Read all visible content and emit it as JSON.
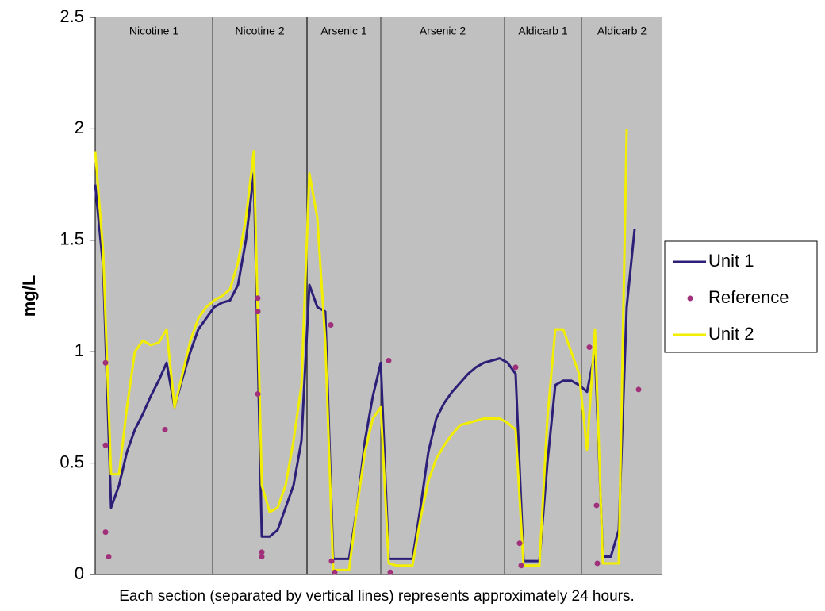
{
  "chart_data": {
    "type": "line",
    "y_label": "mg/L",
    "footnote": "Each section (separated by vertical lines) represents approximately 24 hours.",
    "sections": [
      "Nicotine 1",
      "Nicotine 2",
      "Arsenic 1",
      "Arsenic 2",
      "Aldicarb 1",
      "Aldicarb 2"
    ],
    "ylim": [
      0,
      2.5
    ],
    "yticks": [
      0,
      0.5,
      1,
      1.5,
      2,
      2.5
    ],
    "xlim": [
      0,
      71.5
    ],
    "x": [
      0,
      1,
      2,
      3,
      4,
      5,
      6,
      7,
      8,
      9,
      10,
      11,
      12,
      13,
      14,
      15,
      16,
      17,
      18,
      19,
      20,
      21,
      22,
      23,
      24,
      25,
      26,
      27,
      28,
      29,
      30,
      31,
      32,
      33,
      34,
      35,
      36,
      37,
      38,
      39,
      40,
      41,
      42,
      43,
      44,
      45,
      46,
      47,
      48,
      49,
      50,
      51,
      52,
      53,
      54,
      55,
      56,
      57,
      58,
      59,
      60,
      61,
      62,
      63,
      64,
      65,
      66,
      67,
      68,
      69
    ],
    "series": [
      {
        "name": "Unit 1",
        "color": "#2b1f78",
        "type": "line",
        "values": [
          1.75,
          1.38,
          0.3,
          0.4,
          0.55,
          0.65,
          0.72,
          0.8,
          0.87,
          0.95,
          0.75,
          0.88,
          1.0,
          1.1,
          1.15,
          1.2,
          1.22,
          1.23,
          1.3,
          1.5,
          1.8,
          0.17,
          0.17,
          0.2,
          0.3,
          0.4,
          0.6,
          1.3,
          1.2,
          1.18,
          0.07,
          0.07,
          0.07,
          0.3,
          0.6,
          0.8,
          0.95,
          0.07,
          0.07,
          0.07,
          0.07,
          0.3,
          0.55,
          0.7,
          0.77,
          0.82,
          0.86,
          0.9,
          0.93,
          0.95,
          0.96,
          0.97,
          0.95,
          0.9,
          0.06,
          0.06,
          0.06,
          0.5,
          0.85,
          0.87,
          0.87,
          0.85,
          0.82,
          1.0,
          0.08,
          0.08,
          0.2,
          1.2,
          1.55,
          null
        ]
      },
      {
        "name": "Reference",
        "color": "#a0307a",
        "type": "scatter",
        "x": [
          1.3,
          1.3,
          1.3,
          1.7,
          8.8,
          20.5,
          20.5,
          20.5,
          21,
          21,
          29.7,
          29.8,
          30.2,
          37,
          37.2,
          53,
          53.5,
          53.7,
          62.3,
          63.2,
          63.3,
          68.5
        ],
        "values": [
          0.95,
          0.58,
          0.19,
          0.08,
          0.65,
          1.24,
          1.18,
          0.81,
          0.08,
          0.1,
          1.12,
          0.06,
          0.01,
          0.96,
          0.01,
          0.93,
          0.14,
          0.04,
          1.02,
          0.31,
          0.05,
          0.83
        ]
      },
      {
        "name": "Unit 2",
        "color": "#f2ee00",
        "type": "line",
        "values": [
          1.9,
          1.45,
          0.45,
          0.45,
          0.75,
          1.0,
          1.05,
          1.03,
          1.04,
          1.1,
          0.75,
          0.9,
          1.05,
          1.15,
          1.2,
          1.23,
          1.25,
          1.28,
          1.4,
          1.6,
          1.9,
          0.4,
          0.28,
          0.3,
          0.4,
          0.6,
          0.85,
          1.8,
          1.6,
          1.05,
          0.02,
          0.02,
          0.02,
          0.3,
          0.55,
          0.7,
          0.75,
          0.05,
          0.04,
          0.04,
          0.04,
          0.25,
          0.42,
          0.52,
          0.58,
          0.63,
          0.67,
          0.68,
          0.69,
          0.7,
          0.7,
          0.7,
          0.68,
          0.65,
          0.04,
          0.04,
          0.04,
          0.7,
          1.1,
          1.1,
          1.0,
          0.9,
          0.56,
          1.1,
          0.05,
          0.05,
          0.05,
          2.0,
          null,
          null
        ]
      }
    ]
  }
}
